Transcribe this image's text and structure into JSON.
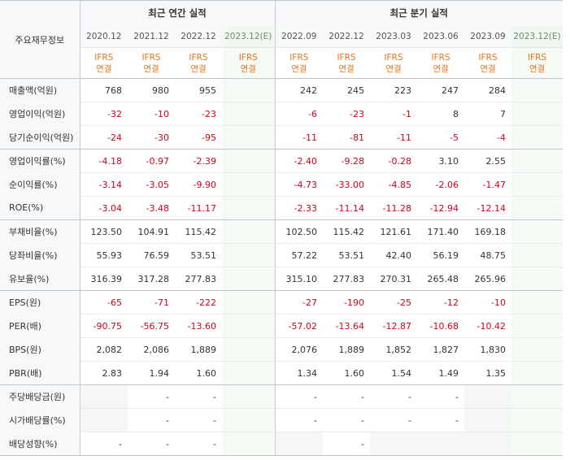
{
  "corner_label": "주요재무정보",
  "groups": {
    "annual": "최근 연간 실적",
    "quarterly": "최근 분기 실적"
  },
  "columns": {
    "annual": [
      "2020.12",
      "2021.12",
      "2022.12",
      "2023.12(E)"
    ],
    "quarterly": [
      "2022.09",
      "2022.12",
      "2023.03",
      "2023.06",
      "2023.09",
      "2023.12(E)"
    ]
  },
  "ifrs": {
    "line1": "IFRS",
    "line2": "연결"
  },
  "rows": [
    {
      "label": "매출액(억원)",
      "annual": [
        "768",
        "980",
        "955",
        ""
      ],
      "quarterly": [
        "242",
        "245",
        "223",
        "247",
        "284",
        ""
      ]
    },
    {
      "label": "영업이익(억원)",
      "annual": [
        "-32",
        "-10",
        "-23",
        ""
      ],
      "quarterly": [
        "-6",
        "-23",
        "-1",
        "8",
        "7",
        ""
      ]
    },
    {
      "label": "당기순이익(억원)",
      "annual": [
        "-24",
        "-30",
        "-95",
        ""
      ],
      "quarterly": [
        "-11",
        "-81",
        "-11",
        "-5",
        "-4",
        ""
      ]
    },
    {
      "label": "영업이익률(%)",
      "annual": [
        "-4.18",
        "-0.97",
        "-2.39",
        ""
      ],
      "quarterly": [
        "-2.40",
        "-9.28",
        "-0.28",
        "3.10",
        "2.55",
        ""
      ]
    },
    {
      "label": "순이익률(%)",
      "annual": [
        "-3.14",
        "-3.05",
        "-9.90",
        ""
      ],
      "quarterly": [
        "-4.73",
        "-33.00",
        "-4.85",
        "-2.06",
        "-1.47",
        ""
      ]
    },
    {
      "label": "ROE(%)",
      "annual": [
        "-3.04",
        "-3.48",
        "-11.17",
        ""
      ],
      "quarterly": [
        "-2.33",
        "-11.14",
        "-11.28",
        "-12.94",
        "-12.14",
        ""
      ]
    },
    {
      "label": "부채비율(%)",
      "annual": [
        "123.50",
        "104.91",
        "115.42",
        ""
      ],
      "quarterly": [
        "102.50",
        "115.42",
        "121.61",
        "171.40",
        "169.18",
        ""
      ]
    },
    {
      "label": "당좌비율(%)",
      "annual": [
        "55.93",
        "76.59",
        "53.51",
        ""
      ],
      "quarterly": [
        "57.22",
        "53.51",
        "42.40",
        "56.19",
        "48.75",
        ""
      ]
    },
    {
      "label": "유보율(%)",
      "annual": [
        "316.39",
        "317.28",
        "277.83",
        ""
      ],
      "quarterly": [
        "315.10",
        "277.83",
        "270.31",
        "265.48",
        "265.96",
        ""
      ]
    },
    {
      "label": "EPS(원)",
      "annual": [
        "-65",
        "-71",
        "-222",
        ""
      ],
      "quarterly": [
        "-27",
        "-190",
        "-25",
        "-12",
        "-10",
        ""
      ]
    },
    {
      "label": "PER(배)",
      "annual": [
        "-90.75",
        "-56.75",
        "-13.60",
        ""
      ],
      "quarterly": [
        "-57.02",
        "-13.64",
        "-12.87",
        "-10.68",
        "-10.42",
        ""
      ]
    },
    {
      "label": "BPS(원)",
      "annual": [
        "2,082",
        "2,086",
        "1,889",
        ""
      ],
      "quarterly": [
        "2,076",
        "1,889",
        "1,852",
        "1,827",
        "1,830",
        ""
      ]
    },
    {
      "label": "PBR(배)",
      "annual": [
        "2.83",
        "1.94",
        "1.60",
        ""
      ],
      "quarterly": [
        "1.34",
        "1.60",
        "1.54",
        "1.49",
        "1.35",
        ""
      ]
    },
    {
      "label": "주당배당금(원)",
      "annual": [
        "",
        "-",
        "-",
        ""
      ],
      "quarterly": [
        "-",
        "-",
        "-",
        "-",
        "",
        ""
      ]
    },
    {
      "label": "시가배당률(%)",
      "annual": [
        "",
        "-",
        "-",
        ""
      ],
      "quarterly": [
        "-",
        "-",
        "-",
        "-",
        "",
        ""
      ]
    },
    {
      "label": "배당성향(%)",
      "annual": [
        "-",
        "-",
        "-",
        ""
      ],
      "quarterly": [
        "",
        "-",
        "",
        "",
        "",
        ""
      ]
    }
  ]
}
